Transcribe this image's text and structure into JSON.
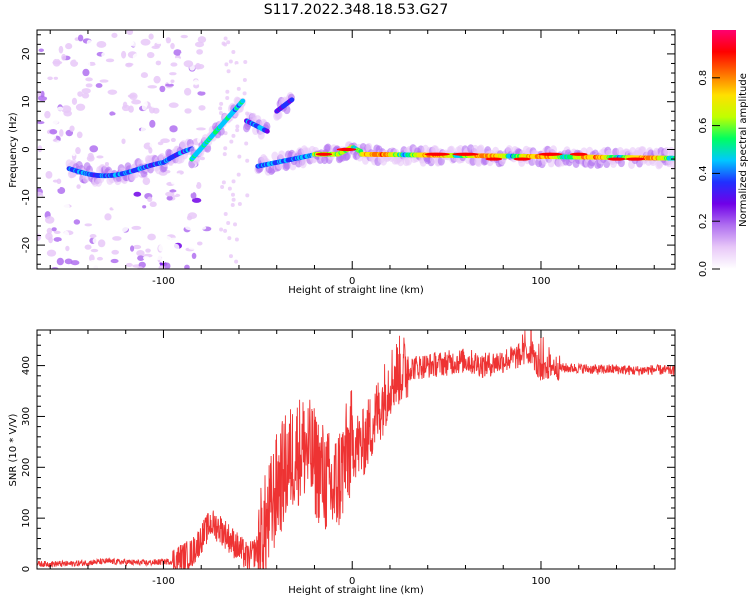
{
  "title": "S117.2022.348.18.53.G27",
  "chart_data": [
    {
      "type": "heatmap",
      "xlabel": "Height of straight line (km)",
      "ylabel": "Frequency (Hz)",
      "xlim": [
        -167,
        171
      ],
      "ylim": [
        -25,
        25
      ],
      "x_ticks": [
        -100,
        0,
        100
      ],
      "y_ticks": [
        -20,
        -10,
        0,
        10,
        20
      ],
      "colorbar": {
        "label": "Normalized spectral amplitude",
        "range": [
          0,
          1
        ],
        "ticks": [
          "0.0",
          "0.2",
          "0.4",
          "0.6",
          "0.8"
        ],
        "colors": [
          "#ffffff",
          "#e8c8f8",
          "#b070f0",
          "#7000e8",
          "#2030ff",
          "#00c8ff",
          "#00ff60",
          "#c0ff00",
          "#ffe000",
          "#ff7000",
          "#ff0000",
          "#ff0070"
        ]
      },
      "ridge": [
        {
          "x": -165,
          "y": -4
        },
        {
          "x": -140,
          "y": -4
        },
        {
          "x": -120,
          "y": -5
        },
        {
          "x": -105,
          "y": -6
        },
        {
          "x": -90,
          "y": -3
        },
        {
          "x": -80,
          "y": 3
        },
        {
          "x": -70,
          "y": 7
        },
        {
          "x": -60,
          "y": 10
        },
        {
          "x": -50,
          "y": 5
        },
        {
          "x": -35,
          "y": 9
        },
        {
          "x": -45,
          "y": -4
        },
        {
          "x": -30,
          "y": -2
        },
        {
          "x": -15,
          "y": -1
        },
        {
          "x": 0,
          "y": 1
        },
        {
          "x": 20,
          "y": 0
        },
        {
          "x": 50,
          "y": -1
        },
        {
          "x": 80,
          "y": -2
        },
        {
          "x": 100,
          "y": -1
        },
        {
          "x": 140,
          "y": -2
        },
        {
          "x": 170,
          "y": -2
        }
      ]
    },
    {
      "type": "line",
      "xlabel": "Height of straight line (km)",
      "ylabel": "SNR (10 * V/V)",
      "xlim": [
        -167,
        171
      ],
      "ylim": [
        0,
        470
      ],
      "x_ticks": [
        -100,
        0,
        100
      ],
      "y_ticks": [
        0,
        100,
        200,
        300,
        400
      ],
      "color": "#ee3333",
      "series": [
        {
          "x": [
            -167,
            -150,
            -130,
            -110,
            -95,
            -85,
            -80,
            -75,
            -70,
            -65,
            -60,
            -55,
            -50,
            -45,
            -40,
            -35,
            -30,
            -25,
            -20,
            -15,
            -10,
            -5,
            0,
            5,
            10,
            15,
            20,
            25,
            30,
            40,
            50,
            60,
            70,
            80,
            90,
            95,
            100,
            105,
            110,
            120,
            130,
            140,
            150,
            160,
            171
          ],
          "y": [
            10,
            10,
            15,
            12,
            15,
            30,
            60,
            90,
            80,
            60,
            40,
            20,
            40,
            90,
            160,
            200,
            230,
            240,
            210,
            180,
            150,
            200,
            250,
            240,
            280,
            320,
            370,
            390,
            395,
            400,
            405,
            410,
            400,
            410,
            420,
            430,
            380,
            400,
            395,
            395,
            392,
            393,
            390,
            392,
            390
          ]
        }
      ]
    }
  ]
}
